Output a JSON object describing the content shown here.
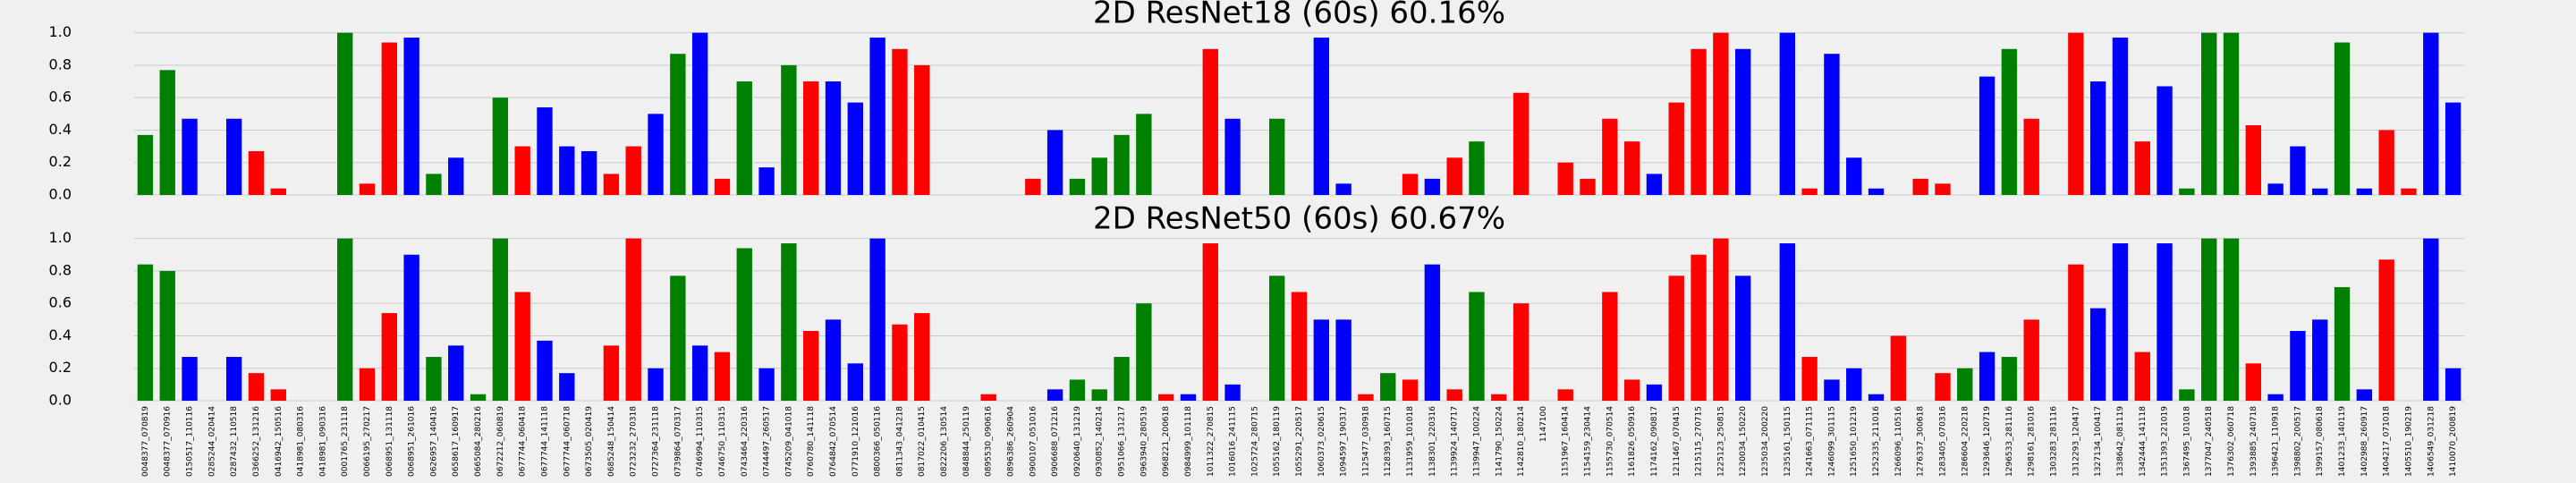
{
  "chart_data": [
    {
      "type": "bar",
      "title": "2D ResNet18 (60s) 60.16%",
      "values": [
        0.37,
        0.77,
        0.47,
        0,
        0.47,
        0.27,
        0.04,
        0,
        0,
        1.0,
        0.07,
        0.94,
        0.97,
        0.13,
        0.23,
        0,
        0.6,
        0.3,
        0.54,
        0.3,
        0.27,
        0.13,
        0.3,
        0.5,
        0.87,
        1.0,
        0.1,
        0.7,
        0.17,
        0.8,
        0.7,
        0.7,
        0.57,
        0.97,
        0.9,
        0.8,
        0,
        0,
        0,
        0,
        0.1,
        0.4,
        0.1,
        0.23,
        0.37,
        0.5,
        0,
        0,
        0.9,
        0.47,
        0,
        0.47,
        0,
        0.97,
        0.07,
        0,
        0,
        0.13,
        0.1,
        0.23,
        0.33,
        0,
        0.63,
        0,
        0.2,
        0.1,
        0.47,
        0.33,
        0.13,
        0.57,
        0.9,
        1.0,
        0.9,
        0,
        1.0,
        0.04,
        0.87,
        0.23,
        0.04,
        0,
        0.1,
        0.07,
        0,
        0.73,
        0.9,
        0.47,
        0,
        1.0,
        0.7,
        0.97,
        0.33,
        0.67,
        0.04,
        1.0,
        1.0,
        0.43,
        0.07,
        0.3,
        0.04,
        0.94,
        0.04,
        0.4,
        0.04,
        1.0,
        0.57
      ],
      "colors": [
        "#008000",
        "#008000",
        "#0000ff",
        "#0000ff",
        "#0000ff",
        "#ff0000",
        "#ff0000",
        "#008000",
        "#008000",
        "#008000",
        "#ff0000",
        "#ff0000",
        "#0000ff",
        "#008000",
        "#0000ff",
        "#008000",
        "#008000",
        "#ff0000",
        "#0000ff",
        "#0000ff",
        "#0000ff",
        "#ff0000",
        "#ff0000",
        "#0000ff",
        "#008000",
        "#0000ff",
        "#ff0000",
        "#008000",
        "#0000ff",
        "#008000",
        "#ff0000",
        "#0000ff",
        "#0000ff",
        "#0000ff",
        "#ff0000",
        "#ff0000",
        "#ff0000",
        "#ff0000",
        "#ff0000",
        "#ff0000",
        "#ff0000",
        "#0000ff",
        "#008000",
        "#008000",
        "#008000",
        "#008000",
        "#ff0000",
        "#0000ff",
        "#ff0000",
        "#0000ff",
        "#ff0000",
        "#008000",
        "#ff0000",
        "#0000ff",
        "#0000ff",
        "#ff0000",
        "#008000",
        "#ff0000",
        "#0000ff",
        "#ff0000",
        "#008000",
        "#ff0000",
        "#ff0000",
        "#ff0000",
        "#ff0000",
        "#ff0000",
        "#ff0000",
        "#ff0000",
        "#0000ff",
        "#ff0000",
        "#ff0000",
        "#ff0000",
        "#0000ff",
        "#0000ff",
        "#0000ff",
        "#ff0000",
        "#0000ff",
        "#0000ff",
        "#0000ff",
        "#ff0000",
        "#ff0000",
        "#ff0000",
        "#008000",
        "#0000ff",
        "#008000",
        "#ff0000",
        "#ff0000",
        "#ff0000",
        "#0000ff",
        "#0000ff",
        "#ff0000",
        "#0000ff",
        "#008000",
        "#008000",
        "#008000",
        "#ff0000",
        "#0000ff",
        "#0000ff",
        "#0000ff",
        "#008000",
        "#0000ff",
        "#ff0000",
        "#ff0000",
        "#0000ff",
        "#0000ff"
      ],
      "ylim": [
        0,
        1.02
      ],
      "yticks": [
        {
          "value": 0,
          "label": "0.0"
        },
        0.2,
        0.4,
        0.6,
        0.8,
        {
          "value": 1,
          "label": "1.0"
        }
      ],
      "grid": true
    },
    {
      "type": "bar",
      "title": "2D ResNet50 (60s) 60.67%",
      "categories": [
        "0048377_070819",
        "0048377_070916",
        "0150517_110116",
        "0285244_020414",
        "0287432_110518",
        "0366252_131216",
        "0416942_150516",
        "0418981_080316",
        "0418981_090316",
        "0001765_231118",
        "0066195_270217",
        "0068951_131118",
        "0068951_261016",
        "0626957_140416",
        "0658617_160917",
        "0665084_280216",
        "0672212_060819",
        "0677744_060418",
        "0677744_141118",
        "0677744_060718",
        "0673505_020419",
        "0685248_150414",
        "0723232_270318",
        "0727364_231118",
        "0739864_070317",
        "0746994_110315",
        "0746750_110315",
        "0743464_220316",
        "0744497_260517",
        "0745209_041018",
        "0760780_141118",
        "0764842_070514",
        "0771910_121016",
        "0800366_050116",
        "0811343_041218",
        "0817022_010415",
        "0822206_130514",
        "0848844_250119",
        "0895530_090616",
        "0896386_260904",
        "0900107_051016",
        "0906688_071216",
        "0920640_131219",
        "0930852_140214",
        "0951066_131217",
        "0963940_280519",
        "0968221_200618",
        "0984999_101118",
        "1011322_270815",
        "1016016_241115",
        "1025724_280715",
        "1055162_180119",
        "1055291_220517",
        "1060373_020615",
        "1094597_190317",
        "1125477_030918",
        "1128393_160715",
        "1131959_101018",
        "1138301_220316",
        "1139924_140717",
        "1139947_100224",
        "1141790_150224",
        "1142810_180214",
        "1147100",
        "1151967_160414",
        "1154159_230414",
        "1155730_070514",
        "1161826_050916",
        "1174162_090817",
        "1211467_070415",
        "1215115_270715",
        "1225123_250815",
        "1230034_150220",
        "1235034_200220",
        "1235161_150115",
        "1241663_071115",
        "1246099_301115",
        "1251650_101219",
        "1252335_211016",
        "1266096_110516",
        "1276337_300618",
        "1283405_070316",
        "1286604_220218",
        "1293646_120719",
        "1296533_281116",
        "1298161_281016",
        "1303283_281116",
        "1312293_120417",
        "1327134_100417",
        "1338642_081119",
        "1342444_141118",
        "1351393_221019",
        "1367495_101018",
        "1377047_240518",
        "1376302_060718",
        "1393885_240718",
        "1396421_110918",
        "1398802_200517",
        "1399157_080618",
        "1401233_140119",
        "1402988_260917",
        "1404217_071018",
        "1405510_190219",
        "1406549_031218",
        "1410070_200819"
      ],
      "values": [
        0.84,
        0.8,
        0.27,
        0,
        0.27,
        0.17,
        0.07,
        0,
        0,
        1.0,
        0.2,
        0.54,
        0.9,
        0.27,
        0.34,
        0.04,
        1.0,
        0.67,
        0.37,
        0.17,
        0,
        0.34,
        1.0,
        0.2,
        0.77,
        0.34,
        0.3,
        0.94,
        0.2,
        0.97,
        0.43,
        0.5,
        0.23,
        1.0,
        0.47,
        0.54,
        0,
        0,
        0.04,
        0,
        0,
        0.07,
        0.13,
        0.07,
        0.27,
        0.6,
        0.04,
        0.04,
        0.97,
        0.1,
        0,
        0.77,
        0.67,
        0.5,
        0.5,
        0.04,
        0.17,
        0.13,
        0.84,
        0.07,
        0.67,
        0.04,
        0.6,
        0,
        0.07,
        0,
        0.67,
        0.13,
        0.1,
        0.77,
        0.9,
        1.0,
        0.77,
        0,
        0.97,
        0.27,
        0.13,
        0.2,
        0.04,
        0.4,
        0,
        0.17,
        0.2,
        0.3,
        0.27,
        0.5,
        0,
        0.84,
        0.57,
        0.97,
        0.3,
        0.97,
        0.07,
        1.0,
        1.0,
        0.23,
        0.04,
        0.43,
        0.5,
        0.7,
        0.07,
        0.87,
        0,
        1.0,
        0.2
      ],
      "colors": [
        "#008000",
        "#008000",
        "#0000ff",
        "#0000ff",
        "#0000ff",
        "#ff0000",
        "#ff0000",
        "#008000",
        "#008000",
        "#008000",
        "#ff0000",
        "#ff0000",
        "#0000ff",
        "#008000",
        "#0000ff",
        "#008000",
        "#008000",
        "#ff0000",
        "#0000ff",
        "#0000ff",
        "#0000ff",
        "#ff0000",
        "#ff0000",
        "#0000ff",
        "#008000",
        "#0000ff",
        "#ff0000",
        "#008000",
        "#0000ff",
        "#008000",
        "#ff0000",
        "#0000ff",
        "#0000ff",
        "#0000ff",
        "#ff0000",
        "#ff0000",
        "#ff0000",
        "#ff0000",
        "#ff0000",
        "#ff0000",
        "#ff0000",
        "#0000ff",
        "#008000",
        "#008000",
        "#008000",
        "#008000",
        "#ff0000",
        "#0000ff",
        "#ff0000",
        "#0000ff",
        "#ff0000",
        "#008000",
        "#ff0000",
        "#0000ff",
        "#0000ff",
        "#ff0000",
        "#008000",
        "#ff0000",
        "#0000ff",
        "#ff0000",
        "#008000",
        "#ff0000",
        "#ff0000",
        "#ff0000",
        "#ff0000",
        "#ff0000",
        "#ff0000",
        "#ff0000",
        "#0000ff",
        "#ff0000",
        "#ff0000",
        "#ff0000",
        "#0000ff",
        "#0000ff",
        "#0000ff",
        "#ff0000",
        "#0000ff",
        "#0000ff",
        "#0000ff",
        "#ff0000",
        "#ff0000",
        "#ff0000",
        "#008000",
        "#0000ff",
        "#008000",
        "#ff0000",
        "#ff0000",
        "#ff0000",
        "#0000ff",
        "#0000ff",
        "#ff0000",
        "#0000ff",
        "#008000",
        "#008000",
        "#008000",
        "#ff0000",
        "#0000ff",
        "#0000ff",
        "#0000ff",
        "#008000",
        "#0000ff",
        "#ff0000",
        "#ff0000",
        "#0000ff",
        "#0000ff"
      ],
      "ylim": [
        0,
        1.02
      ],
      "yticks": [
        {
          "value": 0,
          "label": "0.0"
        },
        0.2,
        0.4,
        0.6,
        0.8,
        {
          "value": 1,
          "label": "1.0"
        }
      ],
      "grid": true
    }
  ]
}
